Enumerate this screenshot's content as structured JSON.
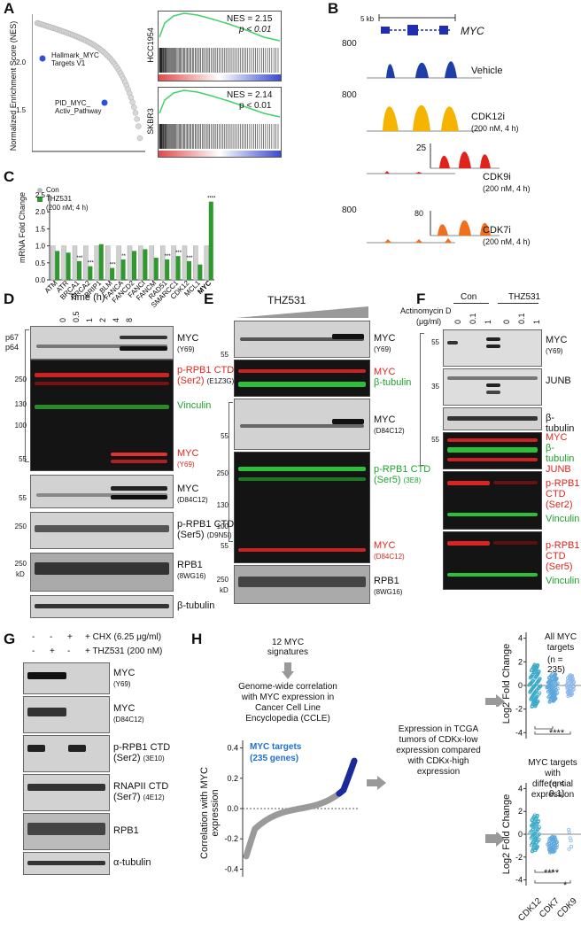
{
  "panels": {
    "A": "A",
    "B": "B",
    "C": "C",
    "D": "D",
    "E": "E",
    "F": "F",
    "G": "G",
    "H": "H"
  },
  "a": {
    "ylabel": "Normalized Enrichment Score (NES)",
    "yticks": [
      "2.0",
      "1.5"
    ],
    "hallmark": "Hallmark_MYC Targets V1",
    "pid": "PID_MYC_ Activ_Pathway",
    "gsea": [
      {
        "cell": "HCC1954",
        "nes": "NES = 2.15",
        "p": "p < 0.01"
      },
      {
        "cell": "SKBR3",
        "nes": "NES = 2.14",
        "p": "p < 0.01"
      }
    ]
  },
  "b": {
    "scale": "5 kb",
    "gene": "MYC",
    "tracks": [
      {
        "name": "Vehicle",
        "cond": "",
        "ymax": "800",
        "inset": "",
        "color": "#1f3fa8"
      },
      {
        "name": "CDK12i",
        "cond": "(200 nM, 4 h)",
        "ymax": "800",
        "inset": "",
        "color": "#f4b400"
      },
      {
        "name": "CDK9i",
        "cond": "(200 nM, 4 h)",
        "ymax": "",
        "inset": "25",
        "color": "#e0241b"
      },
      {
        "name": "CDK7i",
        "cond": "(200 nM, 4 h)",
        "ymax": "800",
        "inset": "80",
        "color": "#f07020"
      }
    ]
  },
  "c": {
    "ylabel": "mRNA Fold Change",
    "legend": [
      "Con",
      "THZ531",
      "(200 nM; 4 h)"
    ],
    "yticks": [
      "2.5",
      "2.0",
      "1.5",
      "1.0",
      "0.5",
      "0.0"
    ],
    "chart_data": {
      "type": "bar",
      "title": "",
      "ylabel": "mRNA Fold Change",
      "ylim": [
        0,
        2.5
      ],
      "categories": [
        "ATM",
        "ATR",
        "BRCA1",
        "BRCA2",
        "BRIP1",
        "BLM",
        "FANCA",
        "FANCD2",
        "FANCI",
        "FANCM",
        "RAD51",
        "SMARCC1",
        "CDK12",
        "MCL1",
        "MYC"
      ],
      "series": [
        {
          "name": "Con",
          "values": [
            1,
            1,
            1,
            1,
            1,
            1,
            1,
            1,
            1,
            1,
            1,
            1,
            1,
            1,
            1
          ]
        },
        {
          "name": "THZ531",
          "values": [
            0.85,
            0.8,
            0.55,
            0.4,
            1.05,
            0.35,
            0.6,
            0.85,
            0.9,
            0.65,
            0.6,
            0.7,
            0.55,
            0.45,
            2.3
          ]
        }
      ],
      "annotations": [
        "***",
        "***",
        "***",
        "**",
        "***",
        "***",
        "***",
        "****"
      ]
    }
  },
  "d": {
    "time_title": "Time  (h)",
    "times": [
      "0",
      "0.5",
      "1",
      "2",
      "4",
      "8"
    ],
    "p67": "p67",
    "p64": "p64",
    "markers1": [
      "250",
      "130",
      "100",
      "55"
    ],
    "blots": [
      {
        "name": "MYC",
        "ab": "(Y69)"
      },
      {
        "name": "p-RPB1 CTD",
        "ab1": "(Ser2)",
        "ab2": "(E1Z3G)"
      },
      {
        "name": "Vinculin"
      },
      {
        "name": "MYC",
        "ab": "(Y69)"
      },
      {
        "name": "MYC",
        "ab": "(D84C12)"
      },
      {
        "name": "p-RPB1 CTD",
        "ab1": "(Ser5)",
        "ab2": "(D9N5I)"
      },
      {
        "name": "RPB1",
        "ab": "(8WG16)"
      },
      {
        "name": "β-tubulin"
      }
    ],
    "m55": "55",
    "m250": "250",
    "m250b": "250",
    "kd": "kD"
  },
  "e": {
    "title": "THZ531",
    "blots": [
      {
        "name": "MYC",
        "ab": "(Y69)"
      },
      {
        "name": "MYC",
        "name2": "β-tubulin"
      },
      {
        "name": "MYC",
        "ab": "(D84C12)"
      },
      {
        "name": "p-RPB1 CTD",
        "ab1": "(Ser5)",
        "ab2": "(3E8)"
      },
      {
        "name": "MYC",
        "ab": "(D84C12)"
      },
      {
        "name": "RPB1",
        "ab": "(8WG16)"
      }
    ],
    "markers": [
      "55",
      "55",
      "250",
      "130",
      "100",
      "55",
      "250"
    ],
    "kd": "kD"
  },
  "f": {
    "con": "Con",
    "thz": "THZ531",
    "act": "Actinomycin D",
    "act_unit": "(μg/ml)",
    "doses": [
      "0",
      "0.1",
      "1",
      "0",
      "0.1",
      "1"
    ],
    "blots": [
      {
        "name": "MYC",
        "ab": "(Y69)"
      },
      {
        "name": "JUNB"
      },
      {
        "name": "β-tubulin"
      },
      {
        "name": "MYC",
        "name2": "β-tubulin",
        "name3": "JUNB"
      },
      {
        "name": "p-RPB1 CTD",
        "ab": "(Ser2)",
        "name2": "Vinculin"
      },
      {
        "name": "p-RPB1 CTD",
        "ab": "(Ser5)",
        "name2": "Vinculin"
      }
    ],
    "markers": [
      "55",
      "35",
      "55"
    ]
  },
  "g": {
    "chx": "+ CHX (6.25 μg/ml)",
    "thz": "+ THZ531 (200 nM)",
    "row1": [
      "-",
      "-",
      "+"
    ],
    "row2": [
      "-",
      "+",
      "-"
    ],
    "blots": [
      {
        "name": "MYC",
        "ab": "(Y69)"
      },
      {
        "name": "MYC",
        "ab": "(D84C12)"
      },
      {
        "name": "p-RPB1 CTD",
        "ab": "(Ser2)",
        "ab2": "(3E10)"
      },
      {
        "name": "RNAPII CTD",
        "ab": "(Ser7)",
        "ab2": "(4E12)"
      },
      {
        "name": "RPB1"
      },
      {
        "name": "α-tubulin"
      }
    ]
  },
  "h": {
    "sig": "12 MYC signatures",
    "corr": "Genome-wide correlation with MYC expression in Cancer Cell Line Encyclopedia (CCLE)",
    "myc_targets": "MYC targets",
    "genes": "(235 genes)",
    "ylabel": "Correlation with MYC expression",
    "yticks": [
      "0.4",
      "0.2",
      "0.0",
      "-0.2",
      "-0.4"
    ],
    "expr": "Expression in TCGA tumors of CDKx-low expression compared with CDKx-high expression",
    "top_title": "All MYC targets",
    "top_n": "(n = 235)",
    "bot_title": "MYC targets with differential expression",
    "bot_q": "(q < 0.1)",
    "ylabel2": "Log2 Fold Change",
    "ticks_top": [
      "4",
      "2",
      "0",
      "-2",
      "-4"
    ],
    "ticks_bot": [
      "4",
      "2",
      "0",
      "-2",
      "-4"
    ],
    "stars_top": "****",
    "stars_bot1": "****",
    "stars_bot2": "*",
    "xcats": [
      "CDK12",
      "CDK7",
      "CDK9"
    ]
  }
}
